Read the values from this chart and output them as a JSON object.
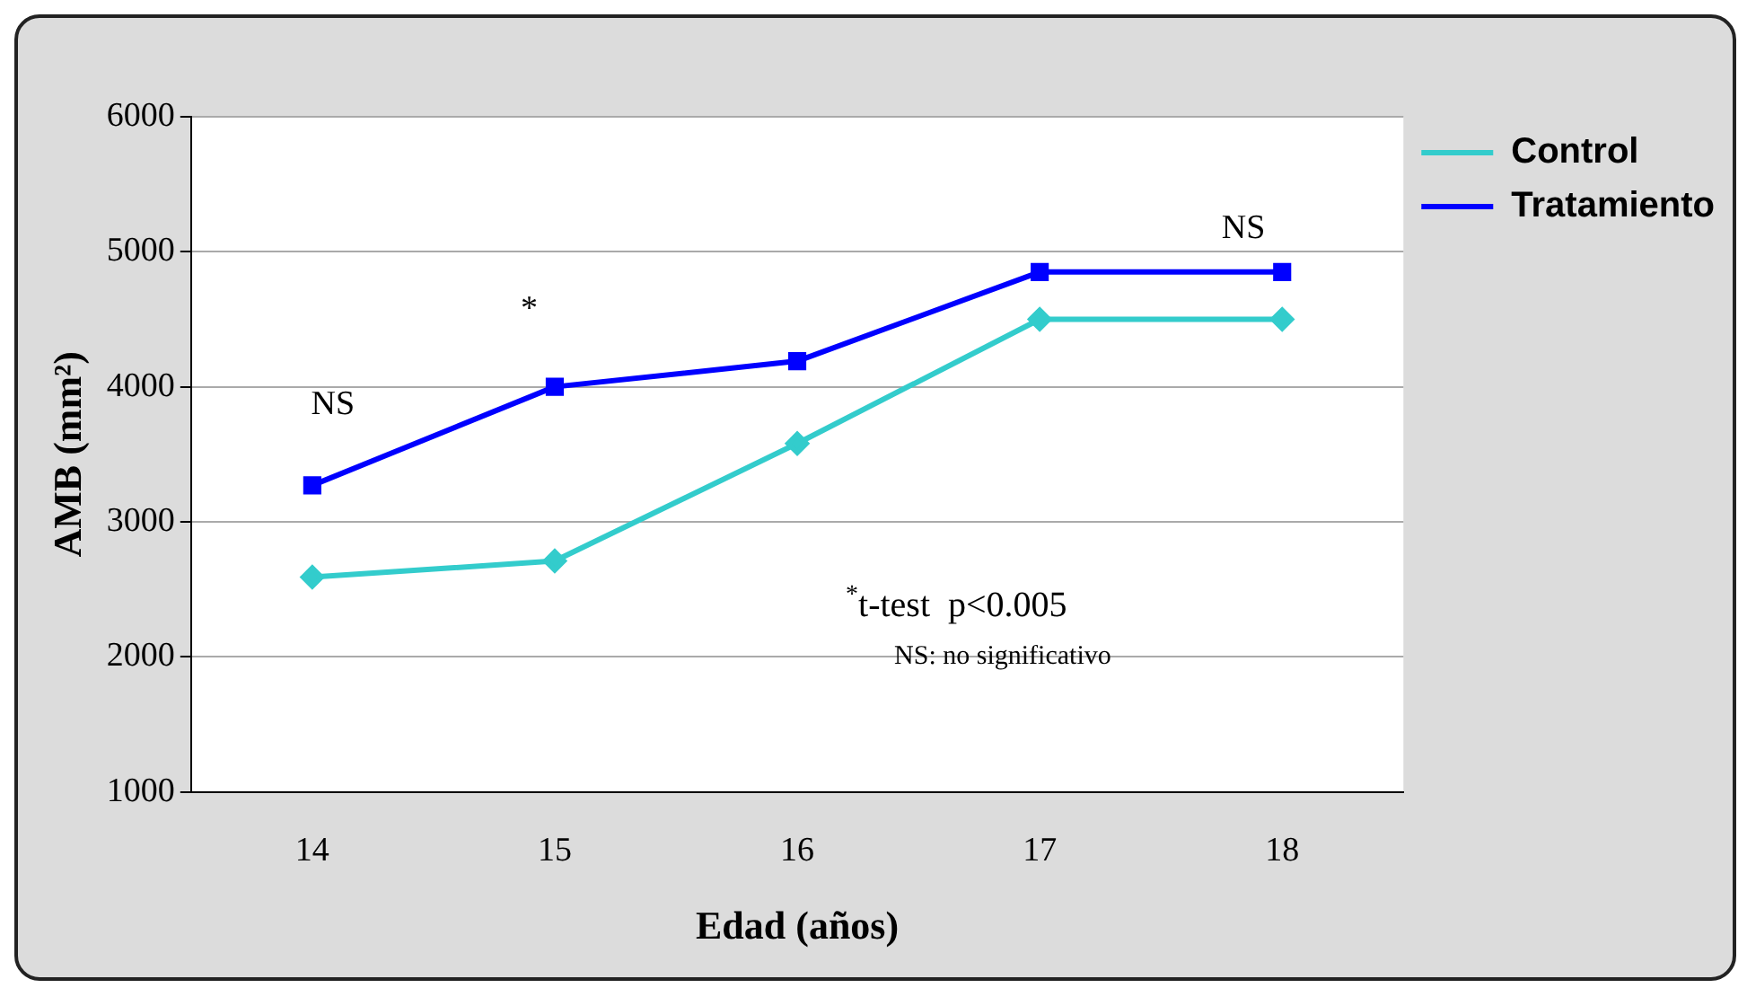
{
  "chart_data": {
    "type": "line",
    "xlabel": "Edad (años)",
    "ylabel": "AMB (mm²)",
    "categories": [
      "14",
      "15",
      "16",
      "17",
      "18"
    ],
    "series": [
      {
        "name": "Control",
        "color": "#33cccc",
        "marker": "diamond",
        "values": [
          2590,
          2710,
          3580,
          4500,
          4500
        ]
      },
      {
        "name": "Tratamiento",
        "color": "#0000ff",
        "marker": "square",
        "values": [
          3270,
          4000,
          4190,
          4850,
          4850
        ]
      }
    ],
    "ylim": [
      1000,
      6000
    ],
    "yticks": [
      1000,
      2000,
      3000,
      4000,
      5000,
      6000
    ],
    "grid": "y",
    "legend": "right",
    "line_style": "solid",
    "annotations": [
      "NS",
      "*",
      "NS",
      "$^{*}$t-test  p<0.005",
      "NS: no significativo"
    ]
  }
}
